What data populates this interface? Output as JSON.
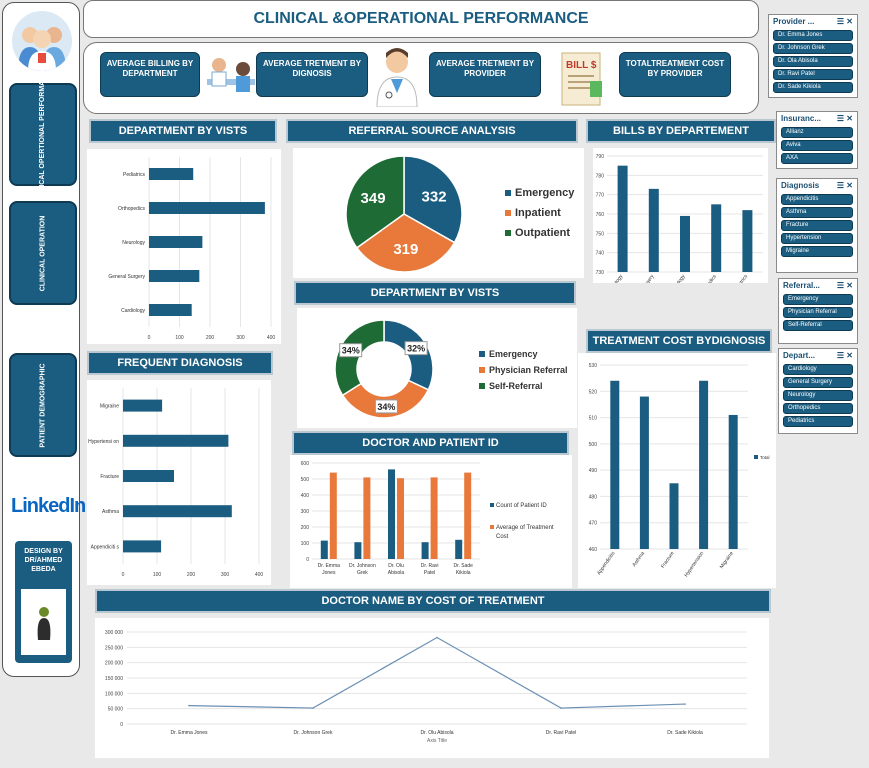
{
  "title": "CLINICAL &OPERATIONAL PERFORMANCE",
  "sidebar": {
    "items": [
      {
        "label": "CLINICAL OPERTIONAL PERFORMANCE"
      },
      {
        "label": "CLINICAL OPERATION"
      },
      {
        "label": "PATIENT DEMOGRAPHIC"
      }
    ],
    "linkedin": "LinkedIn",
    "designer": "DESIGN BY DR/AHMED EBEDA"
  },
  "kpis": [
    {
      "label": "AVERAGE BILLING BY DEPARTMENT"
    },
    {
      "label": "AVERAGE TRETMENT BY DIGNOSIS"
    },
    {
      "label": "AVERAGE TRETMENT BY PROVIDER"
    },
    {
      "label": "TOTALTREATMENT COST BY PROVIDER"
    }
  ],
  "kpi_bill_label": "BILL $",
  "titles": {
    "dept_visits": "DEPARTMENT BY VISTS",
    "referral": "REFERRAL SOURCE ANALYSIS",
    "bills": "BILLS BY DEPARTEMENT",
    "dept_visits2": "DEPARTMENT BY VISTS",
    "treat_cost": "TREATMENT COST BYDIGNOSIS",
    "freq_diag": "FREQUENT DIAGNOSIS",
    "doctor_patient": "DOCTOR AND PATIENT ID",
    "doctor_cost": "DOCTOR NAME BY COST OF TREATMENT"
  },
  "slicers": {
    "provider": {
      "title": "Provider ...",
      "items": [
        "Dr. Emma Jones",
        "Dr. Johnson Grek",
        "Dr. Ola Abisola",
        "Dr. Ravi Patel",
        "Dr. Sade Kikiola"
      ]
    },
    "insurance": {
      "title": "Insuranc...",
      "items": [
        "Allianz",
        "Aviva",
        "AXA"
      ]
    },
    "diagnosis": {
      "title": "Diagnosis",
      "items": [
        "Appendicitis",
        "Asthma",
        "Fracture",
        "Hypertension",
        "Migraine"
      ]
    },
    "referral": {
      "title": "Referral...",
      "items": [
        "Emergency",
        "Physician Referral",
        "Self-Referral"
      ]
    },
    "department": {
      "title": "Depart...",
      "items": [
        "Cardiology",
        "General Surgery",
        "Neurology",
        "Orthopedics",
        "Pediatrics"
      ]
    }
  },
  "chart_data": [
    {
      "id": "dept_visits",
      "type": "bar",
      "orientation": "horizontal",
      "categories": [
        "Pediatrics",
        "Orthopedics",
        "Neurology",
        "General Surgery",
        "Cardiology"
      ],
      "values": [
        145,
        380,
        175,
        165,
        140
      ],
      "xlim": [
        0,
        400
      ],
      "xticks": [
        "0",
        "100",
        "200",
        "300",
        "400"
      ]
    },
    {
      "id": "referral",
      "type": "pie",
      "labels": [
        "Emergency",
        "Inpatient",
        "Outpatient"
      ],
      "values": [
        332,
        319,
        349
      ],
      "colors": [
        "#1b5d80",
        "#e8793a",
        "#1e6b35"
      ]
    },
    {
      "id": "bills",
      "type": "bar",
      "categories": [
        "Cardiology",
        "General Surgery",
        "Neurology",
        "Orthopedics",
        "Pediatrics"
      ],
      "values": [
        785,
        773,
        759,
        765,
        762
      ],
      "ylim": [
        730,
        790
      ],
      "yticks": [
        "730",
        "740",
        "750",
        "760",
        "770",
        "780",
        "790"
      ]
    },
    {
      "id": "dept_visits2",
      "type": "pie",
      "donut": true,
      "labels": [
        "Emergency",
        "Physician Referral",
        "Self-Referral"
      ],
      "values": [
        32,
        34,
        34
      ],
      "data_labels": [
        "32%",
        "34%",
        "34%"
      ],
      "colors": [
        "#1b5d80",
        "#e8793a",
        "#1e6b35"
      ]
    },
    {
      "id": "treat_cost",
      "type": "bar",
      "categories": [
        "Appendicitis",
        "Asthma",
        "Fracture",
        "Hypertension",
        "Migraine"
      ],
      "values": [
        524,
        518,
        485,
        524,
        511
      ],
      "ylim": [
        460,
        530
      ],
      "yticks": [
        "460",
        "470",
        "480",
        "490",
        "500",
        "510",
        "520",
        "530"
      ],
      "legend": "Total"
    },
    {
      "id": "freq_diag",
      "type": "bar",
      "orientation": "horizontal",
      "categories": [
        "Migraine",
        "Hypertension",
        "Fracture",
        "Asthma",
        "Appendicitis"
      ],
      "tick_labels": [
        "Migraine",
        "Hypertensi on",
        "Fracture",
        "Asthma",
        "Appendiciti s"
      ],
      "values": [
        115,
        310,
        150,
        320,
        112
      ],
      "xlim": [
        0,
        400
      ],
      "xticks": [
        "0",
        "100",
        "200",
        "300",
        "400"
      ]
    },
    {
      "id": "doctor_patient",
      "type": "bar",
      "categories": [
        "Dr. Emma Jones",
        "Dr. Johnson Grek",
        "Dr. Olu Abisola",
        "Dr. Ravi Patel",
        "Dr. Sade Kikiola"
      ],
      "series": [
        {
          "name": "Count of Patient ID",
          "values": [
            115,
            105,
            560,
            105,
            120
          ],
          "color": "#1b5d80"
        },
        {
          "name": "Average of Treatment Cost",
          "values": [
            540,
            510,
            505,
            510,
            540
          ],
          "color": "#e8793a"
        }
      ],
      "ylim": [
        0,
        600
      ],
      "yticks": [
        "0",
        "100",
        "200",
        "300",
        "400",
        "500",
        "600"
      ]
    },
    {
      "id": "doctor_cost",
      "type": "line",
      "categories": [
        "Dr. Emma Jones",
        "Dr. Johnson Grek",
        "Dr. Olu Abisola",
        "Dr. Ravi Patel",
        "Dr. Sade Kikiola"
      ],
      "values": [
        60000,
        52000,
        282000,
        52000,
        65000
      ],
      "ylim": [
        0,
        300000
      ],
      "yticks": [
        "0",
        "50000",
        "100000",
        "150000",
        "200000",
        "250000",
        "300000"
      ],
      "yticks_display": [
        "0",
        "50 000",
        "100 000",
        "150 000",
        "200 000",
        "250 000",
        "300 000"
      ],
      "xlabel": "Axis Title"
    }
  ]
}
